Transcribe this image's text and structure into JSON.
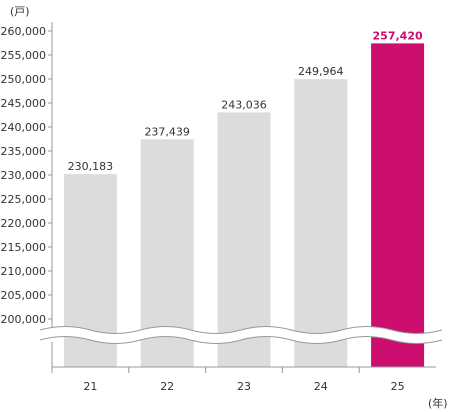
{
  "chart_data": {
    "type": "bar",
    "y_unit": "(戸)",
    "x_unit": "(年)",
    "categories": [
      "21",
      "22",
      "23",
      "24",
      "25"
    ],
    "values": [
      230183,
      237439,
      243036,
      249964,
      257420
    ],
    "value_labels": [
      "230,183",
      "237,439",
      "243,036",
      "249,964",
      "257,420"
    ],
    "y_ticks": [
      "200,000",
      "205,000",
      "210,000",
      "215,000",
      "220,000",
      "225,000",
      "230,000",
      "235,000",
      "240,000",
      "245,000",
      "250,000",
      "255,000",
      "260,000"
    ],
    "ylim": [
      200000,
      260000
    ],
    "axis_break": true,
    "highlight_index": 4,
    "colors": {
      "bar": "#dcdcdc",
      "highlight": "#cc0e6e",
      "axis": "#999999"
    }
  }
}
